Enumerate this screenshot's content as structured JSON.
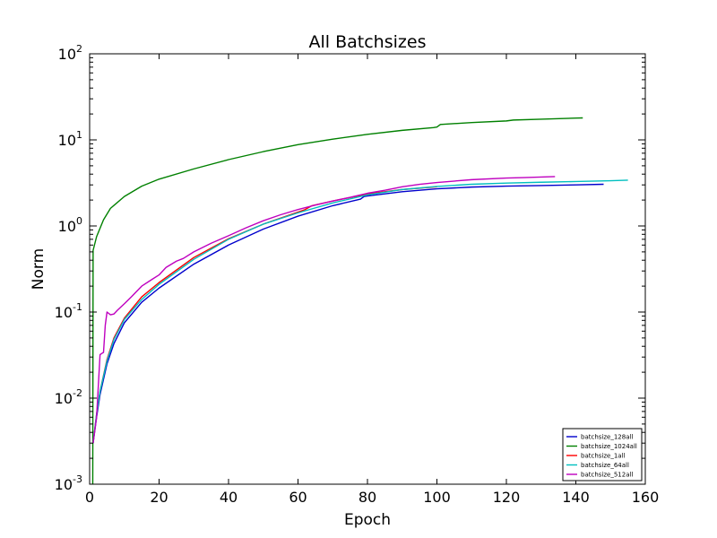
{
  "chart_data": {
    "type": "line",
    "title": "All Batchsizes",
    "xlabel": "Epoch",
    "ylabel": "Norm",
    "yscale": "log",
    "xlim": [
      0,
      160
    ],
    "ylim": [
      0.001,
      100
    ],
    "xticks": [
      0,
      20,
      40,
      60,
      80,
      100,
      120,
      140,
      160
    ],
    "yticks": [
      {
        "base": "10",
        "exp": "-3",
        "value": 0.001
      },
      {
        "base": "10",
        "exp": "-2",
        "value": 0.01
      },
      {
        "base": "10",
        "exp": "-1",
        "value": 0.1
      },
      {
        "base": "10",
        "exp": "0",
        "value": 1
      },
      {
        "base": "10",
        "exp": "1",
        "value": 10
      },
      {
        "base": "10",
        "exp": "2",
        "value": 100
      }
    ],
    "legend_position": "lower-right",
    "series": [
      {
        "name": "batchsize_128all",
        "color": "#0000cc",
        "x": [
          1,
          2,
          3,
          5,
          7,
          10,
          15,
          20,
          30,
          40,
          50,
          60,
          70,
          78,
          79,
          80,
          90,
          100,
          110,
          120,
          130,
          140,
          148
        ],
        "y": [
          0.003,
          0.006,
          0.011,
          0.025,
          0.043,
          0.075,
          0.13,
          0.19,
          0.36,
          0.6,
          0.92,
          1.3,
          1.72,
          2.05,
          2.2,
          2.23,
          2.5,
          2.7,
          2.83,
          2.9,
          2.95,
          3.0,
          3.05
        ]
      },
      {
        "name": "batchsize_1024all",
        "color": "#008000",
        "x": [
          0.9,
          1,
          2,
          4,
          6,
          10,
          15,
          20,
          30,
          40,
          50,
          60,
          70,
          80,
          90,
          99,
          100,
          101,
          110,
          120,
          122,
          130,
          140,
          142
        ],
        "y": [
          0.001,
          0.52,
          0.75,
          1.18,
          1.6,
          2.2,
          2.9,
          3.5,
          4.6,
          5.9,
          7.3,
          8.8,
          10.2,
          11.6,
          12.9,
          13.9,
          14.1,
          15.1,
          15.9,
          16.6,
          17.0,
          17.4,
          17.9,
          18.0
        ]
      },
      {
        "name": "batchsize_1all",
        "color": "#ff0000",
        "x": [
          1,
          2,
          3,
          5,
          7,
          10,
          15,
          20,
          30,
          40,
          50,
          60,
          62,
          64,
          70,
          80,
          90,
          100
        ],
        "y": [
          0.003,
          0.0065,
          0.012,
          0.028,
          0.05,
          0.085,
          0.15,
          0.22,
          0.43,
          0.71,
          1.05,
          1.45,
          1.55,
          1.72,
          1.95,
          2.35,
          2.65,
          2.85
        ]
      },
      {
        "name": "batchsize_64all",
        "color": "#00bfbf",
        "x": [
          1,
          2,
          3,
          5,
          7,
          10,
          15,
          20,
          30,
          40,
          50,
          60,
          70,
          80,
          90,
          100,
          110,
          120,
          130,
          140,
          150,
          155
        ],
        "y": [
          0.003,
          0.0065,
          0.012,
          0.027,
          0.048,
          0.082,
          0.14,
          0.21,
          0.41,
          0.7,
          1.05,
          1.42,
          1.85,
          2.3,
          2.65,
          2.88,
          3.05,
          3.15,
          3.22,
          3.28,
          3.35,
          3.4
        ]
      },
      {
        "name": "batchsize_512all",
        "color": "#bf00bf",
        "x": [
          1,
          2,
          3,
          3.5,
          4,
          4.5,
          5,
          6,
          7,
          8,
          10,
          12,
          15,
          18,
          20,
          22,
          25,
          27,
          30,
          35,
          40,
          45,
          50,
          55,
          60,
          65,
          70,
          75,
          80,
          85,
          90,
          95,
          100,
          110,
          120,
          125,
          130,
          134
        ],
        "y": [
          0.003,
          0.006,
          0.032,
          0.033,
          0.034,
          0.07,
          0.1,
          0.093,
          0.095,
          0.105,
          0.125,
          0.15,
          0.2,
          0.24,
          0.27,
          0.33,
          0.39,
          0.42,
          0.5,
          0.63,
          0.77,
          0.95,
          1.15,
          1.35,
          1.55,
          1.75,
          1.95,
          2.15,
          2.4,
          2.6,
          2.85,
          3.05,
          3.2,
          3.45,
          3.6,
          3.65,
          3.7,
          3.75
        ]
      }
    ]
  }
}
